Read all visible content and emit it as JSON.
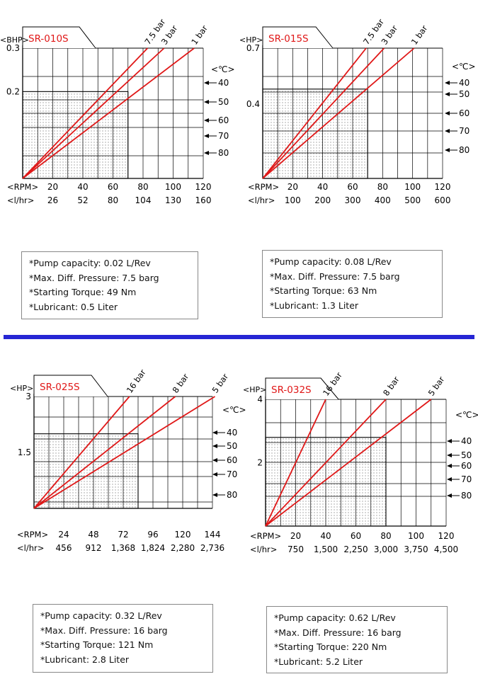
{
  "colors": {
    "curve": "#e01818",
    "divider": "#2626d4",
    "grid": "#000000",
    "shade": "#d9d9d9"
  },
  "chart_data": [
    {
      "type": "line",
      "title": "SR-010S",
      "ylabel": "<BHP>",
      "ylim": [
        0,
        0.3
      ],
      "ytick_labels": [
        {
          "value": 0.2,
          "label": "0.2"
        },
        {
          "value": 0.3,
          "label": "0.3"
        }
      ],
      "x_rows": [
        {
          "label": "<RPM>",
          "ticks": [
            "20",
            "40",
            "60",
            "80",
            "100",
            "120"
          ]
        },
        {
          "label": "<l/hr>",
          "ticks": [
            "26",
            "52",
            "80",
            "104",
            "130",
            "160"
          ]
        }
      ],
      "xlim": [
        0,
        120
      ],
      "series": [
        {
          "name": "7.5 bar",
          "x": [
            0,
            83
          ],
          "y": [
            0,
            0.3
          ]
        },
        {
          "name": "3 bar",
          "x": [
            0,
            94
          ],
          "y": [
            0,
            0.3
          ]
        },
        {
          "name": "1 bar",
          "x": [
            0,
            114
          ],
          "y": [
            0,
            0.3
          ]
        }
      ],
      "temp_axis": {
        "label": "<℃>",
        "values": [
          "40",
          "50",
          "60",
          "70",
          "80"
        ]
      },
      "shaded_region": {
        "x": [
          0,
          70
        ],
        "y": [
          0,
          0.2
        ]
      }
    },
    {
      "type": "line",
      "title": "SR-015S",
      "ylabel": "<HP>",
      "ylim": [
        0,
        0.7
      ],
      "ytick_labels": [
        {
          "value": 0.4,
          "label": "0.4"
        },
        {
          "value": 0.7,
          "label": "0.7"
        }
      ],
      "x_rows": [
        {
          "label": "<RPM>",
          "ticks": [
            "20",
            "40",
            "60",
            "80",
            "100",
            "120"
          ]
        },
        {
          "label": "<l/hr>",
          "ticks": [
            "100",
            "200",
            "300",
            "400",
            "500",
            "600"
          ]
        }
      ],
      "xlim": [
        0,
        120
      ],
      "series": [
        {
          "name": "7.5 bar",
          "x": [
            0,
            69
          ],
          "y": [
            0,
            0.7
          ]
        },
        {
          "name": "3 bar",
          "x": [
            0,
            81
          ],
          "y": [
            0,
            0.7
          ]
        },
        {
          "name": "1 bar",
          "x": [
            0,
            101
          ],
          "y": [
            0,
            0.7
          ]
        }
      ],
      "temp_axis": {
        "label": "<℃>",
        "values": [
          "40",
          "50",
          "60",
          "70",
          "80"
        ]
      },
      "shaded_region": {
        "x": [
          0,
          70
        ],
        "y": [
          0,
          0.48
        ]
      }
    },
    {
      "type": "line",
      "title": "SR-025S",
      "ylabel": "<HP>",
      "ylim": [
        0,
        3
      ],
      "ytick_labels": [
        {
          "value": 1.5,
          "label": "1.5"
        },
        {
          "value": 3,
          "label": "3"
        }
      ],
      "x_rows": [
        {
          "label": "<RPM>",
          "ticks": [
            "24",
            "48",
            "72",
            "96",
            "120",
            "144"
          ]
        },
        {
          "label": "<l/hr>",
          "ticks": [
            "456",
            "912",
            "1,368",
            "1,824",
            "2,280",
            "2,736"
          ]
        }
      ],
      "xlim": [
        0,
        144
      ],
      "series": [
        {
          "name": "16 bar",
          "x": [
            0,
            77
          ],
          "y": [
            0,
            3
          ]
        },
        {
          "name": "8 bar",
          "x": [
            0,
            114
          ],
          "y": [
            0,
            3
          ]
        },
        {
          "name": "5 bar",
          "x": [
            0,
            146
          ],
          "y": [
            0,
            3
          ]
        }
      ],
      "temp_axis": {
        "label": "<℃>",
        "values": [
          "40",
          "50",
          "60",
          "70",
          "80"
        ]
      },
      "shaded_region": {
        "x": [
          0,
          84
        ],
        "y": [
          0,
          2
        ]
      }
    },
    {
      "type": "line",
      "title": "SR-032S",
      "ylabel": "<HP>",
      "ylim": [
        0,
        4
      ],
      "ytick_labels": [
        {
          "value": 2,
          "label": "2"
        },
        {
          "value": 4,
          "label": "4"
        }
      ],
      "x_rows": [
        {
          "label": "<RPM>",
          "ticks": [
            "20",
            "40",
            "60",
            "80",
            "100",
            "120"
          ]
        },
        {
          "label": "<l/hr>",
          "ticks": [
            "750",
            "1,500",
            "2,250",
            "3,000",
            "3,750",
            "4,500"
          ]
        }
      ],
      "xlim": [
        0,
        120
      ],
      "series": [
        {
          "name": "16 bar",
          "x": [
            0,
            40
          ],
          "y": [
            0,
            4
          ]
        },
        {
          "name": "8 bar",
          "x": [
            0,
            80
          ],
          "y": [
            0,
            4
          ]
        },
        {
          "name": "5 bar",
          "x": [
            0,
            110
          ],
          "y": [
            0,
            4
          ]
        }
      ],
      "temp_axis": {
        "label": "<℃>",
        "values": [
          "40",
          "50",
          "60",
          "70",
          "80"
        ]
      },
      "shaded_region": {
        "x": [
          0,
          80
        ],
        "y": [
          0,
          2.8
        ]
      }
    }
  ],
  "specs": [
    [
      "*Pump capacity:  0.02 L/Rev",
      "*Max. Diff. Pressure:  7.5 barg",
      "*Starting Torque:  49 Nm",
      "*Lubricant:  0.5 Liter"
    ],
    [
      "*Pump capacity:  0.08 L/Rev",
      "*Max. Diff. Pressure:  7.5 barg",
      "*Starting Torque:  63 Nm",
      "*Lubricant:  1.3 Liter"
    ],
    [
      "*Pump capacity:  0.32 L/Rev",
      "*Max. Diff. Pressure:  16 barg",
      "*Starting Torque:  121 Nm",
      "*Lubricant:  2.8 Liter"
    ],
    [
      "*Pump capacity:  0.62 L/Rev",
      "*Max. Diff. Pressure:  16 barg",
      "*Starting Torque:  220 Nm",
      "*Lubricant:  5.2 Liter"
    ]
  ]
}
